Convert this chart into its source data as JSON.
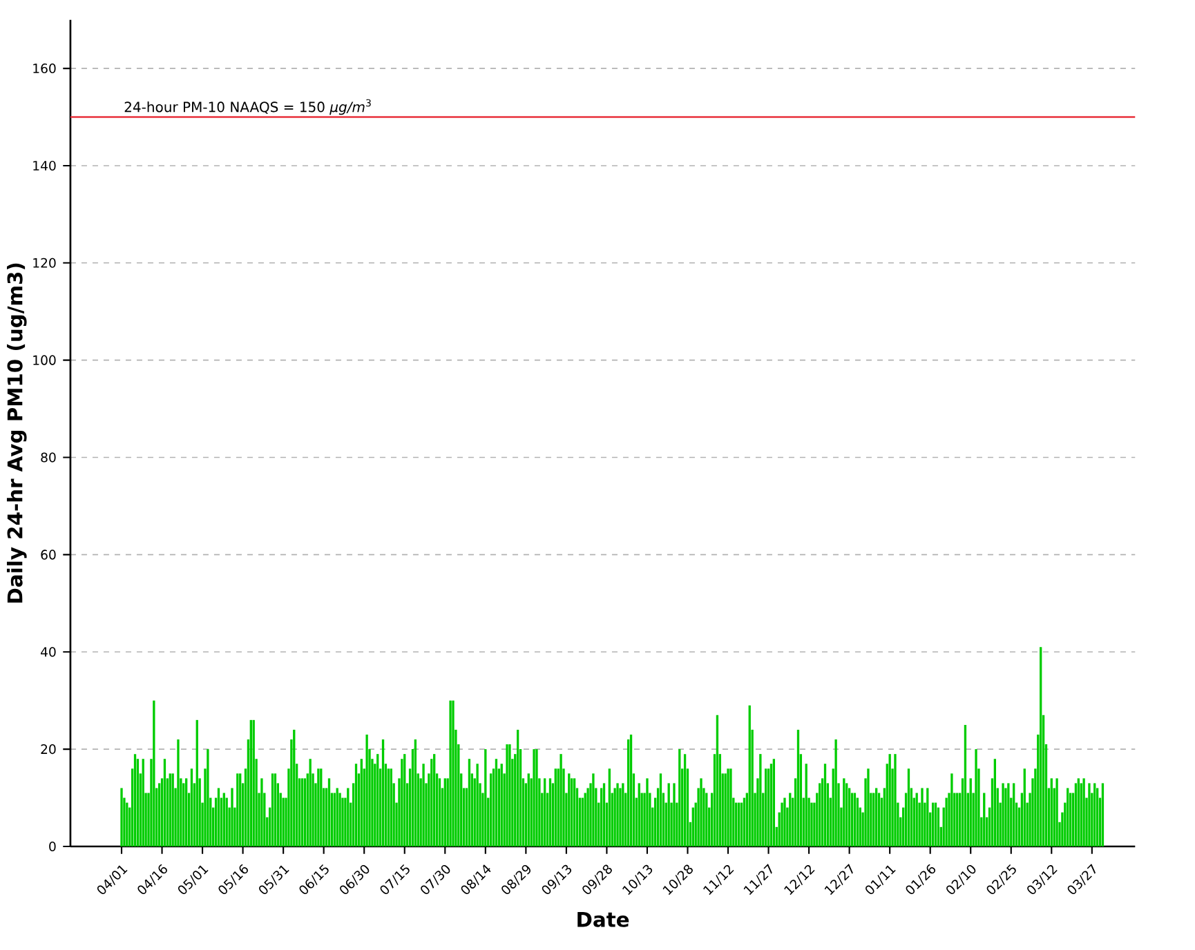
{
  "chart_data": {
    "type": "bar",
    "xlabel": "Date",
    "ylabel": "Daily 24-hr Avg PM10 (ug/m3)",
    "categories": [
      "04/01",
      null,
      null,
      null,
      null,
      null,
      null,
      null,
      null,
      null,
      null,
      null,
      null,
      null,
      null,
      "04/16",
      null,
      null,
      null,
      null,
      null,
      null,
      null,
      null,
      null,
      null,
      null,
      null,
      null,
      null,
      "05/01",
      null,
      null,
      null,
      null,
      null,
      null,
      null,
      null,
      null,
      null,
      null,
      null,
      null,
      null,
      "05/16",
      null,
      null,
      null,
      null,
      null,
      null,
      null,
      null,
      null,
      null,
      null,
      null,
      null,
      null,
      "05/31",
      null,
      null,
      null,
      null,
      null,
      null,
      null,
      null,
      null,
      null,
      null,
      null,
      null,
      null,
      "06/15",
      null,
      null,
      null,
      null,
      null,
      null,
      null,
      null,
      null,
      null,
      null,
      null,
      null,
      null,
      "06/30",
      null,
      null,
      null,
      null,
      null,
      null,
      null,
      null,
      null,
      null,
      null,
      null,
      null,
      null,
      "07/15",
      null,
      null,
      null,
      null,
      null,
      null,
      null,
      null,
      null,
      null,
      null,
      null,
      null,
      null,
      "07/30",
      null,
      null,
      null,
      null,
      null,
      null,
      null,
      null,
      null,
      null,
      null,
      null,
      null,
      null,
      "08/14",
      null,
      null,
      null,
      null,
      null,
      null,
      null,
      null,
      null,
      null,
      null,
      null,
      null,
      null,
      "08/29",
      null,
      null,
      null,
      null,
      null,
      null,
      null,
      null,
      null,
      null,
      null,
      null,
      null,
      null,
      "09/13",
      null,
      null,
      null,
      null,
      null,
      null,
      null,
      null,
      null,
      null,
      null,
      null,
      null,
      null,
      "09/28",
      null,
      null,
      null,
      null,
      null,
      null,
      null,
      null,
      null,
      null,
      null,
      null,
      null,
      null,
      "10/13",
      null,
      null,
      null,
      null,
      null,
      null,
      null,
      null,
      null,
      null,
      null,
      null,
      null,
      null,
      "10/28",
      null,
      null,
      null,
      null,
      null,
      null,
      null,
      null,
      null,
      null,
      null,
      null,
      null,
      null,
      "11/12",
      null,
      null,
      null,
      null,
      null,
      null,
      null,
      null,
      null,
      null,
      null,
      null,
      null,
      null,
      "11/27",
      null,
      null,
      null,
      null,
      null,
      null,
      null,
      null,
      null,
      null,
      null,
      null,
      null,
      null,
      "12/12",
      null,
      null,
      null,
      null,
      null,
      null,
      null,
      null,
      null,
      null,
      null,
      null,
      null,
      null,
      "12/27",
      null,
      null,
      null,
      null,
      null,
      null,
      null,
      null,
      null,
      null,
      null,
      null,
      null,
      null,
      "01/11",
      null,
      null,
      null,
      null,
      null,
      null,
      null,
      null,
      null,
      null,
      null,
      null,
      null,
      null,
      "01/26",
      null,
      null,
      null,
      null,
      null,
      null,
      null,
      null,
      null,
      null,
      null,
      null,
      null,
      null,
      "02/10",
      null,
      null,
      null,
      null,
      null,
      null,
      null,
      null,
      null,
      null,
      null,
      null,
      null,
      null,
      "02/25",
      null,
      null,
      null,
      null,
      null,
      null,
      null,
      null,
      null,
      null,
      null,
      null,
      null,
      null,
      "03/12",
      null,
      null,
      null,
      null,
      null,
      null,
      null,
      null,
      null,
      null,
      null,
      null,
      null,
      null,
      "03/27",
      null,
      null,
      null,
      null
    ],
    "values": [
      12,
      10,
      9,
      8,
      16,
      19,
      18,
      15,
      18,
      11,
      11,
      18,
      30,
      12,
      13,
      14,
      18,
      14,
      15,
      15,
      12,
      22,
      14,
      13,
      14,
      11,
      16,
      13,
      26,
      14,
      9,
      16,
      20,
      10,
      8,
      10,
      12,
      10,
      11,
      10,
      8,
      12,
      8,
      15,
      15,
      13,
      16,
      22,
      26,
      26,
      18,
      11,
      14,
      11,
      6,
      8,
      15,
      15,
      13,
      11,
      10,
      10,
      16,
      22,
      24,
      17,
      14,
      14,
      14,
      15,
      18,
      15,
      13,
      16,
      16,
      12,
      12,
      14,
      11,
      11,
      12,
      11,
      10,
      10,
      12,
      9,
      13,
      17,
      15,
      18,
      16,
      23,
      20,
      18,
      17,
      19,
      16,
      22,
      17,
      16,
      16,
      13,
      9,
      14,
      18,
      19,
      13,
      16,
      20,
      22,
      15,
      14,
      17,
      13,
      15,
      18,
      19,
      15,
      14,
      12,
      14,
      14,
      30,
      30,
      24,
      21,
      15,
      12,
      12,
      18,
      15,
      14,
      17,
      13,
      11,
      20,
      10,
      15,
      16,
      18,
      16,
      17,
      15,
      21,
      21,
      18,
      19,
      24,
      20,
      14,
      13,
      15,
      14,
      20,
      20,
      14,
      11,
      14,
      11,
      14,
      13,
      16,
      16,
      19,
      16,
      11,
      15,
      14,
      14,
      12,
      10,
      10,
      11,
      12,
      13,
      15,
      12,
      9,
      12,
      13,
      9,
      16,
      11,
      12,
      13,
      12,
      13,
      11,
      22,
      23,
      15,
      10,
      13,
      11,
      11,
      14,
      11,
      8,
      10,
      12,
      15,
      11,
      9,
      13,
      9,
      13,
      9,
      20,
      16,
      19,
      16,
      5,
      8,
      9,
      12,
      14,
      12,
      11,
      8,
      11,
      19,
      27,
      19,
      15,
      15,
      16,
      16,
      10,
      9,
      9,
      9,
      10,
      11,
      29,
      24,
      11,
      14,
      19,
      11,
      16,
      16,
      17,
      18,
      4,
      7,
      9,
      10,
      8,
      11,
      10,
      14,
      24,
      19,
      10,
      17,
      10,
      9,
      9,
      11,
      13,
      14,
      17,
      13,
      10,
      16,
      22,
      13,
      8,
      14,
      13,
      12,
      11,
      11,
      10,
      8,
      7,
      14,
      16,
      11,
      11,
      12,
      11,
      10,
      12,
      17,
      19,
      16,
      19,
      9,
      6,
      8,
      11,
      16,
      12,
      10,
      11,
      9,
      12,
      9,
      12,
      7,
      9,
      9,
      8,
      4,
      8,
      10,
      11,
      15,
      11,
      11,
      11,
      14,
      25,
      11,
      14,
      11,
      20,
      16,
      6,
      11,
      6,
      8,
      14,
      18,
      12,
      9,
      13,
      12,
      13,
      10,
      13,
      9,
      8,
      11,
      16,
      9,
      11,
      14,
      16,
      23,
      41,
      27,
      21,
      12,
      14,
      12,
      14,
      5,
      7,
      9,
      12,
      11,
      11,
      13,
      14,
      13,
      14,
      10,
      13,
      11,
      13,
      12,
      10,
      13
    ],
    "color": "#00cc00",
    "ylim": [
      0,
      170
    ],
    "yticks": [
      0,
      20,
      40,
      60,
      80,
      100,
      120,
      140,
      160
    ],
    "grid": "y",
    "ref_lines": [
      {
        "axis": "y",
        "value": 150,
        "label": "24-hour PM-10 NAAQS = 150 *μg/m*$^{3}$",
        "color": "#e8303a"
      }
    ]
  }
}
